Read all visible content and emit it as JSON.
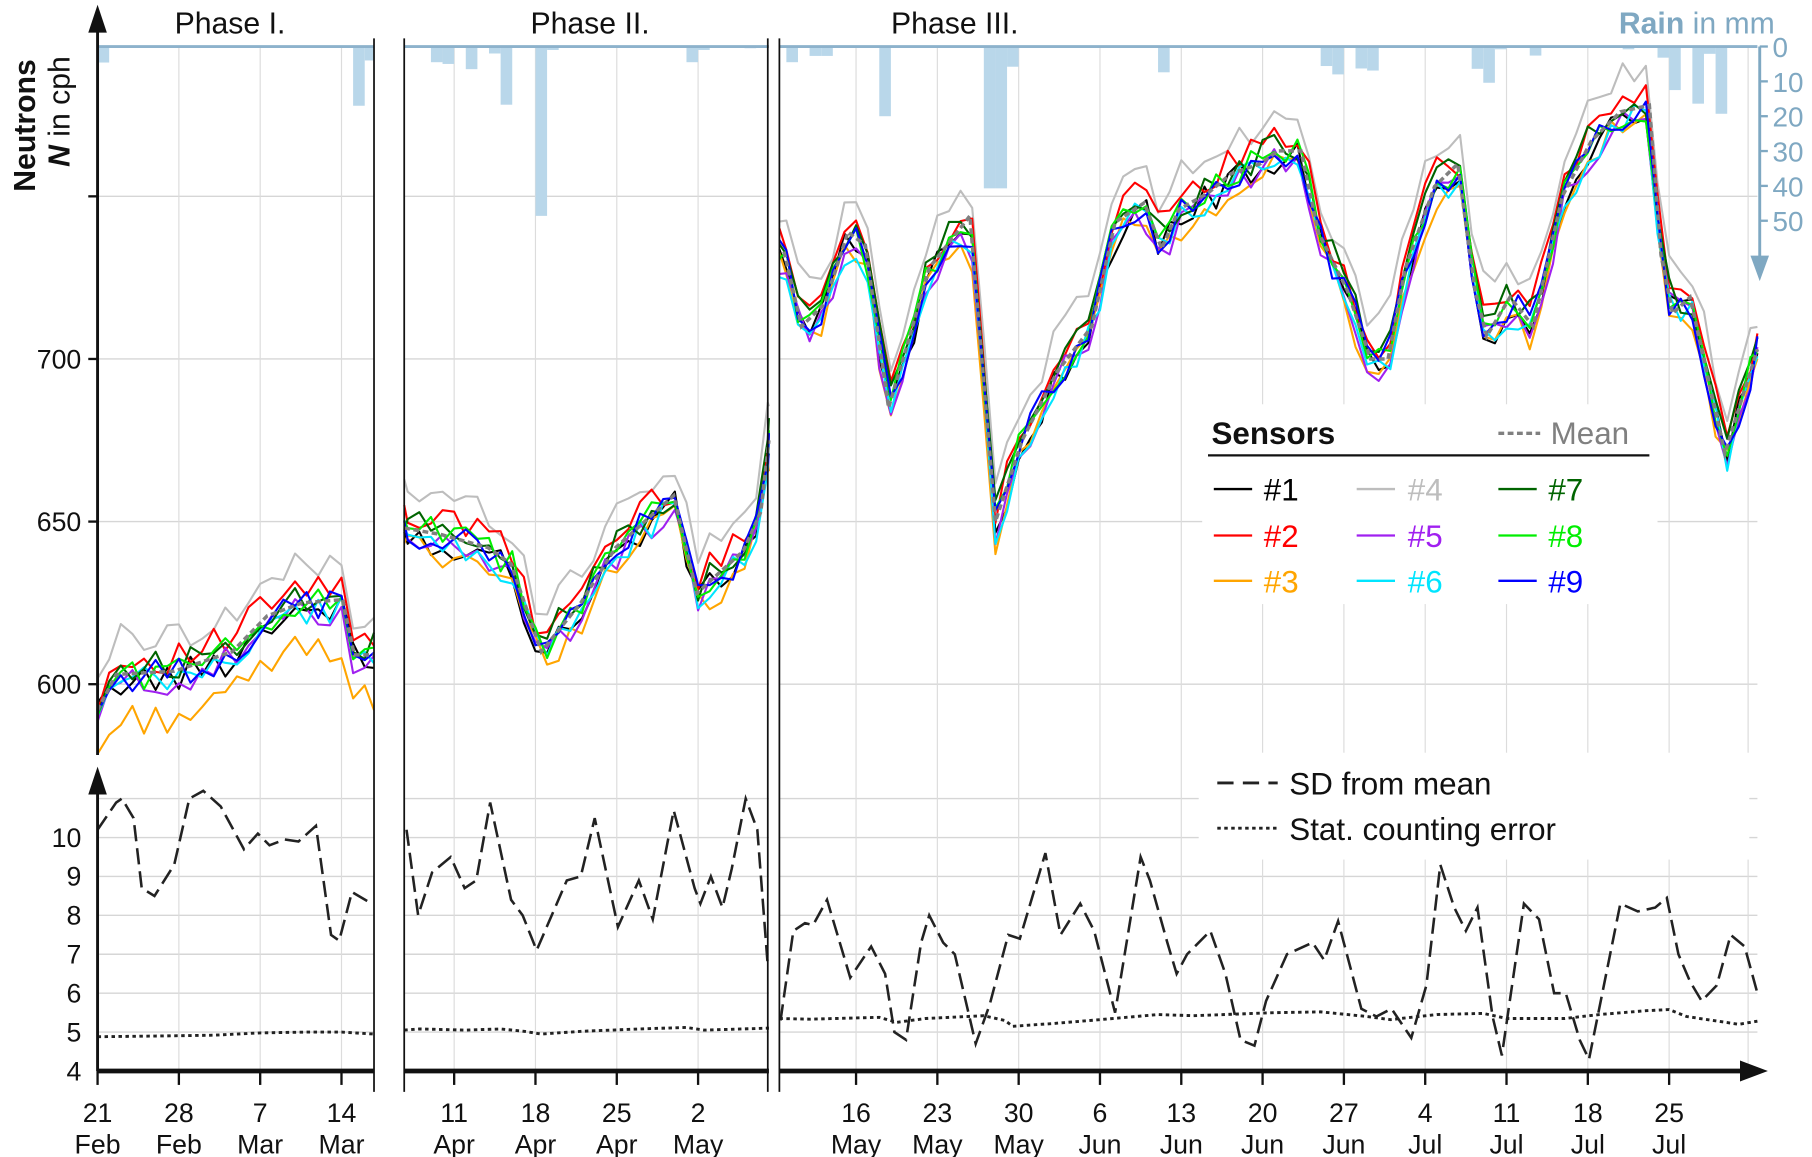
{
  "chart_data": {
    "type": "line",
    "x_unit": "days since 21 Feb",
    "y_label_bold": "Neutrons",
    "y_label_var": "N",
    "y_label_unit": " in cph",
    "rain_label_bold": "Rain",
    "rain_label_unit": " in mm",
    "panels": [
      {
        "title": "Phase I.",
        "x_range": [
          0,
          23.8
        ],
        "ticks": [
          {
            "day": 0,
            "l1": "21",
            "l2": "Feb"
          },
          {
            "day": 7,
            "l1": "28",
            "l2": "Feb"
          },
          {
            "day": 14,
            "l1": "7",
            "l2": "Mar"
          },
          {
            "day": 21,
            "l1": "14",
            "l2": "Mar"
          }
        ]
      },
      {
        "title": "Phase II.",
        "x_range": [
          44.7,
          76.1
        ],
        "ticks": [
          {
            "day": 49,
            "l1": "11",
            "l2": "Apr"
          },
          {
            "day": 56,
            "l1": "18",
            "l2": "Apr"
          },
          {
            "day": 63,
            "l1": "25",
            "l2": "Apr"
          },
          {
            "day": 70,
            "l1": "2",
            "l2": "May"
          }
        ]
      },
      {
        "title": "Phase III.",
        "x_range": [
          77.4,
          161.6
        ],
        "ticks": [
          {
            "day": 84,
            "l1": "16",
            "l2": "May"
          },
          {
            "day": 91,
            "l1": "23",
            "l2": "May"
          },
          {
            "day": 98,
            "l1": "30",
            "l2": "May"
          },
          {
            "day": 105,
            "l1": "6",
            "l2": "Jun"
          },
          {
            "day": 112,
            "l1": "13",
            "l2": "Jun"
          },
          {
            "day": 119,
            "l1": "20",
            "l2": "Jun"
          },
          {
            "day": 126,
            "l1": "27",
            "l2": "Jun"
          },
          {
            "day": 133,
            "l1": "4",
            "l2": "Jul"
          },
          {
            "day": 140,
            "l1": "11",
            "l2": "Jul"
          },
          {
            "day": 147,
            "l1": "18",
            "l2": "Jul"
          },
          {
            "day": 154,
            "l1": "25",
            "l2": "Jul"
          }
        ]
      }
    ],
    "neutron_axis": {
      "ylim": [
        578,
        796
      ],
      "ticks": [
        600,
        650,
        700,
        750
      ],
      "tick_labels": [
        "600",
        "650",
        "700",
        ""
      ]
    },
    "rain_axis": {
      "ylim": [
        0,
        66
      ],
      "inverted": true,
      "ticks": [
        0,
        10,
        20,
        30,
        40,
        50
      ],
      "tick_labels": [
        "0",
        "10",
        "20",
        "30",
        "40",
        "50"
      ]
    },
    "sd_axis": {
      "ylim": [
        4,
        11.5
      ],
      "ticks": [
        4,
        5,
        6,
        7,
        8,
        9,
        10,
        11
      ],
      "tick_labels": [
        "4",
        "5",
        "6",
        "7",
        "8",
        "9",
        "10",
        ""
      ]
    },
    "legend": {
      "title": "Sensors",
      "mean_label": "Mean",
      "placement": "center-right"
    },
    "legend_lower": {
      "sd_label": "SD from mean",
      "stat_label": "Stat. counting error",
      "placement": "top-right"
    },
    "sensors": [
      {
        "name": "#1",
        "color": "#000000",
        "offset": -2
      },
      {
        "name": "#2",
        "color": "#ff0000",
        "offset": 4
      },
      {
        "name": "#3",
        "color": "#ffa500",
        "offset": -5
      },
      {
        "name": "#4",
        "color": "#bdbdbd",
        "offset": 11
      },
      {
        "name": "#5",
        "color": "#a020f0",
        "offset": -3
      },
      {
        "name": "#6",
        "color": "#00e5ff",
        "offset": -3
      },
      {
        "name": "#7",
        "color": "#006400",
        "offset": 2
      },
      {
        "name": "#8",
        "color": "#00ee00",
        "offset": 0
      },
      {
        "name": "#9",
        "color": "#0000ff",
        "offset": -1
      }
    ],
    "mean": {
      "name": "Mean",
      "color": "#808080",
      "points": [
        [
          0,
          592
        ],
        [
          1.6,
          603
        ],
        [
          6.6,
          604
        ],
        [
          11.6,
          610
        ],
        [
          14.6,
          621
        ],
        [
          17.6,
          625
        ],
        [
          21.1,
          626
        ],
        [
          22.1,
          609
        ],
        [
          23.8,
          609
        ],
        [
          44.7,
          648
        ],
        [
          47.9,
          646
        ],
        [
          51.9,
          642
        ],
        [
          53.9,
          637
        ],
        [
          56.5,
          610
        ],
        [
          59.9,
          625
        ],
        [
          62.9,
          642
        ],
        [
          67.9,
          658
        ],
        [
          69.9,
          628
        ],
        [
          73.9,
          641
        ],
        [
          75.4,
          653
        ],
        [
          76.1,
          675
        ],
        [
          77.8,
          733
        ],
        [
          79.3,
          710
        ],
        [
          81.3,
          717
        ],
        [
          83.3,
          739
        ],
        [
          84.8,
          735
        ],
        [
          86.8,
          685
        ],
        [
          88.3,
          703
        ],
        [
          90.3,
          728
        ],
        [
          93.8,
          744
        ],
        [
          96,
          650
        ],
        [
          98.3,
          675
        ],
        [
          101.3,
          696
        ],
        [
          104.3,
          710
        ],
        [
          106.3,
          742
        ],
        [
          108.8,
          748
        ],
        [
          110.3,
          734
        ],
        [
          111.8,
          746
        ],
        [
          114.3,
          751
        ],
        [
          116.3,
          757
        ],
        [
          118.8,
          760
        ],
        [
          120.3,
          764
        ],
        [
          122.3,
          764
        ],
        [
          123.8,
          739
        ],
        [
          126.3,
          721
        ],
        [
          128.3,
          700
        ],
        [
          129.8,
          700
        ],
        [
          131.3,
          728
        ],
        [
          133.8,
          753
        ],
        [
          135.8,
          760
        ],
        [
          137.3,
          721
        ],
        [
          138.3,
          707
        ],
        [
          140.3,
          719
        ],
        [
          142.3,
          710
        ],
        [
          144.8,
          750
        ],
        [
          147.3,
          767
        ],
        [
          149.8,
          776
        ],
        [
          152.3,
          778
        ],
        [
          153.3,
          732
        ],
        [
          154.3,
          714
        ],
        [
          155.8,
          719
        ],
        [
          158.8,
          671
        ],
        [
          161.6,
          703
        ]
      ]
    },
    "sd_from_mean": {
      "name": "SD from mean",
      "points": [
        [
          0,
          10.2
        ],
        [
          1.6,
          10.9
        ],
        [
          2.1,
          11.0
        ],
        [
          3.1,
          10.5
        ],
        [
          3.8,
          8.7
        ],
        [
          4.9,
          8.5
        ],
        [
          6.6,
          9.3
        ],
        [
          7.9,
          11.0
        ],
        [
          9.1,
          11.2
        ],
        [
          10.6,
          10.8
        ],
        [
          12.6,
          9.7
        ],
        [
          13.8,
          10.1
        ],
        [
          14.8,
          9.8
        ],
        [
          16.1,
          9.95
        ],
        [
          17.3,
          9.9
        ],
        [
          18.8,
          10.3
        ],
        [
          20.1,
          7.5
        ],
        [
          20.8,
          7.35
        ],
        [
          21.9,
          8.6
        ],
        [
          23.6,
          8.3
        ],
        [
          44.9,
          10.2
        ],
        [
          45.9,
          8.0
        ],
        [
          47.1,
          9.1
        ],
        [
          48.7,
          9.5
        ],
        [
          49.9,
          8.7
        ],
        [
          50.9,
          8.9
        ],
        [
          52.1,
          10.9
        ],
        [
          53.9,
          8.4
        ],
        [
          54.9,
          8.0
        ],
        [
          56.1,
          7.1
        ],
        [
          58.7,
          8.9
        ],
        [
          59.9,
          9.0
        ],
        [
          61.1,
          10.5
        ],
        [
          63.1,
          7.7
        ],
        [
          64.9,
          8.9
        ],
        [
          66.1,
          7.9
        ],
        [
          67.9,
          10.7
        ],
        [
          69.7,
          8.7
        ],
        [
          70.2,
          8.3
        ],
        [
          71.1,
          9.0
        ],
        [
          72.1,
          8.2
        ],
        [
          72.9,
          9.2
        ],
        [
          74.1,
          11.0
        ],
        [
          75.1,
          10.2
        ],
        [
          76.0,
          6.7
        ],
        [
          77.5,
          5.3
        ],
        [
          78.6,
          7.6
        ],
        [
          79.6,
          7.8
        ],
        [
          80.3,
          7.75
        ],
        [
          81.5,
          8.4
        ],
        [
          83.5,
          6.4
        ],
        [
          85.3,
          7.2
        ],
        [
          86.5,
          6.5
        ],
        [
          87.3,
          5.0
        ],
        [
          88.3,
          4.8
        ],
        [
          89.6,
          7.3
        ],
        [
          90.3,
          8.0
        ],
        [
          91.5,
          7.3
        ],
        [
          92.5,
          7.0
        ],
        [
          94.3,
          4.7
        ],
        [
          95.5,
          5.7
        ],
        [
          97.1,
          7.5
        ],
        [
          98.1,
          7.4
        ],
        [
          100.3,
          9.6
        ],
        [
          101.6,
          7.5
        ],
        [
          103.3,
          8.3
        ],
        [
          104.5,
          7.6
        ],
        [
          106.3,
          5.5
        ],
        [
          108.5,
          9.5
        ],
        [
          109.3,
          8.9
        ],
        [
          110.8,
          7.3
        ],
        [
          111.6,
          6.5
        ],
        [
          112.5,
          7.0
        ],
        [
          114.5,
          7.6
        ],
        [
          115.8,
          6.5
        ],
        [
          117.1,
          4.8
        ],
        [
          118.3,
          4.65
        ],
        [
          119.3,
          5.8
        ],
        [
          121.1,
          7.0
        ],
        [
          123.3,
          7.3
        ],
        [
          124.3,
          6.85
        ],
        [
          125.5,
          7.85
        ],
        [
          127.5,
          5.6
        ],
        [
          128.8,
          5.4
        ],
        [
          130.1,
          5.6
        ],
        [
          131.8,
          4.85
        ],
        [
          133.1,
          6.2
        ],
        [
          134.3,
          9.3
        ],
        [
          135.5,
          8.2
        ],
        [
          136.5,
          7.6
        ],
        [
          137.5,
          8.2
        ],
        [
          138.8,
          5.4
        ],
        [
          139.6,
          4.4
        ],
        [
          141.5,
          8.3
        ],
        [
          142.8,
          7.9
        ],
        [
          144.1,
          6.0
        ],
        [
          145.1,
          6.0
        ],
        [
          146.3,
          4.8
        ],
        [
          147.1,
          4.3
        ],
        [
          149.8,
          8.3
        ],
        [
          151.3,
          8.1
        ],
        [
          152.8,
          8.2
        ],
        [
          153.8,
          8.45
        ],
        [
          154.8,
          7.0
        ],
        [
          155.8,
          6.3
        ],
        [
          156.8,
          5.8
        ],
        [
          158.1,
          6.2
        ],
        [
          159.3,
          7.5
        ],
        [
          160.5,
          7.2
        ],
        [
          161.6,
          6.0
        ]
      ]
    },
    "stat_error": {
      "name": "Stat. counting error",
      "points": [
        [
          0,
          4.88
        ],
        [
          5,
          4.9
        ],
        [
          10,
          4.92
        ],
        [
          14,
          4.98
        ],
        [
          18,
          5.0
        ],
        [
          21,
          5.0
        ],
        [
          23.8,
          4.95
        ],
        [
          44.7,
          5.05
        ],
        [
          46,
          5.08
        ],
        [
          50,
          5.05
        ],
        [
          53,
          5.08
        ],
        [
          55,
          5.02
        ],
        [
          56.5,
          4.95
        ],
        [
          60,
          5.02
        ],
        [
          65,
          5.08
        ],
        [
          69,
          5.12
        ],
        [
          70.5,
          5.05
        ],
        [
          76.1,
          5.1
        ],
        [
          77.4,
          5.35
        ],
        [
          80,
          5.33
        ],
        [
          86,
          5.38
        ],
        [
          87.5,
          5.25
        ],
        [
          90,
          5.35
        ],
        [
          95,
          5.42
        ],
        [
          96.8,
          5.3
        ],
        [
          97.5,
          5.15
        ],
        [
          101,
          5.22
        ],
        [
          105,
          5.32
        ],
        [
          110,
          5.45
        ],
        [
          113,
          5.42
        ],
        [
          120,
          5.5
        ],
        [
          124,
          5.52
        ],
        [
          128,
          5.4
        ],
        [
          130,
          5.32
        ],
        [
          134,
          5.45
        ],
        [
          138,
          5.48
        ],
        [
          140,
          5.35
        ],
        [
          145,
          5.35
        ],
        [
          148,
          5.45
        ],
        [
          152,
          5.55
        ],
        [
          154,
          5.58
        ],
        [
          155.5,
          5.4
        ],
        [
          160,
          5.2
        ],
        [
          161.6,
          5.28
        ]
      ]
    },
    "rain": {
      "name": "Rain",
      "unit": "mm",
      "color": "#b9d7ea",
      "points": [
        [
          0,
          4.6
        ],
        [
          22,
          17
        ],
        [
          23,
          4
        ],
        [
          47,
          4.5
        ],
        [
          48,
          5
        ],
        [
          50,
          6.5
        ],
        [
          52,
          2
        ],
        [
          53,
          16.7
        ],
        [
          56,
          48.6
        ],
        [
          57,
          1
        ],
        [
          69,
          4.5
        ],
        [
          70,
          1
        ],
        [
          74,
          0.5
        ],
        [
          77,
          1
        ],
        [
          78,
          4.5
        ],
        [
          80,
          2.7
        ],
        [
          81,
          2.7
        ],
        [
          86,
          20
        ],
        [
          95,
          40.7
        ],
        [
          96,
          40.7
        ],
        [
          97,
          5.8
        ],
        [
          110,
          7.4
        ],
        [
          124,
          5.6
        ],
        [
          125,
          8
        ],
        [
          127,
          6.3
        ],
        [
          128,
          6.9
        ],
        [
          137,
          6.4
        ],
        [
          138,
          10.4
        ],
        [
          139,
          0.8
        ],
        [
          142,
          2.6
        ],
        [
          150,
          0.8
        ],
        [
          153,
          3.2
        ],
        [
          154,
          12.5
        ],
        [
          156,
          16.4
        ],
        [
          157,
          2.1
        ],
        [
          158,
          19.3
        ]
      ]
    }
  }
}
